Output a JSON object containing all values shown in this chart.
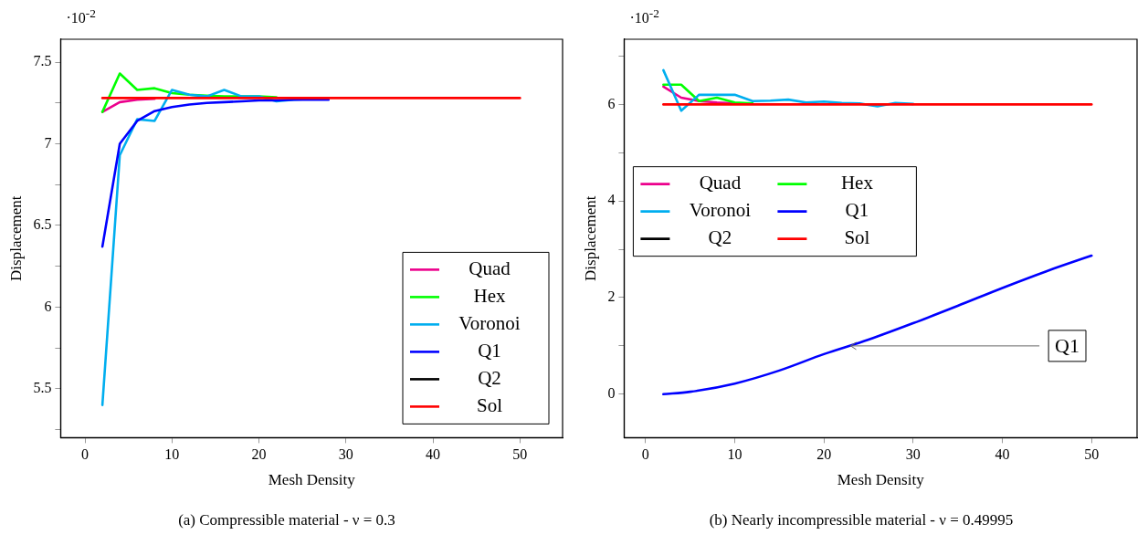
{
  "chart_data": [
    {
      "type": "line",
      "title": "(a) Compressible material - ν = 0.3",
      "xlabel": "Mesh Density",
      "ylabel": "Displacement",
      "annotations": [
        "·10$^{-2}$"
      ],
      "x": [
        2,
        4,
        6,
        8,
        10,
        12,
        14,
        16,
        18,
        20,
        22,
        24,
        26,
        28,
        30,
        32,
        34,
        36,
        38,
        40,
        42,
        44,
        46,
        48,
        50
      ],
      "series": [
        {
          "name": "Quad",
          "color": "#ec008c",
          "values": [
            7.195,
            7.255,
            7.27,
            7.275,
            null,
            null,
            null,
            null,
            null,
            null,
            null,
            null,
            null,
            null,
            null,
            null,
            null,
            null,
            null,
            null,
            null,
            null,
            null,
            null,
            null
          ]
        },
        {
          "name": "Hex",
          "color": "#00ff00",
          "values": [
            7.195,
            7.43,
            7.33,
            7.34,
            7.31,
            7.3,
            7.295,
            7.29,
            7.29,
            7.29,
            7.285,
            null,
            null,
            null,
            null,
            null,
            null,
            null,
            null,
            null,
            null,
            null,
            null,
            null,
            null
          ]
        },
        {
          "name": "Voronoi",
          "color": "#00aeef",
          "values": [
            5.4,
            6.93,
            7.15,
            7.14,
            7.33,
            7.3,
            7.29,
            7.33,
            7.29,
            7.29,
            7.26,
            7.27,
            7.275,
            null,
            null,
            null,
            null,
            null,
            null,
            null,
            null,
            null,
            null,
            null,
            null
          ]
        },
        {
          "name": "Q1",
          "color": "#0000ff",
          "values": [
            6.37,
            7.0,
            7.14,
            7.2,
            7.225,
            7.24,
            7.25,
            7.255,
            7.26,
            7.265,
            7.265,
            7.27,
            7.27,
            7.27,
            null,
            null,
            null,
            null,
            null,
            null,
            null,
            null,
            null,
            null,
            null
          ]
        },
        {
          "name": "Q2",
          "color": "#000000",
          "values": [
            null,
            null,
            null,
            null,
            null,
            null,
            null,
            null,
            null,
            null,
            null,
            null,
            null,
            null,
            null,
            null,
            null,
            null,
            null,
            null,
            null,
            null,
            null,
            null,
            null
          ]
        },
        {
          "name": "Sol",
          "color": "#ff0000",
          "values": [
            7.28,
            7.28,
            7.28,
            7.28,
            7.28,
            7.28,
            7.28,
            7.28,
            7.28,
            7.28,
            7.28,
            7.28,
            7.28,
            7.28,
            7.28,
            7.28,
            7.28,
            7.28,
            7.28,
            7.28,
            7.28,
            7.28,
            7.28,
            7.28,
            7.28
          ]
        }
      ],
      "xlim": [
        -2.8,
        54.9
      ],
      "xticks": [
        0,
        10,
        20,
        30,
        40,
        50
      ],
      "ylim": [
        5.2,
        7.64
      ],
      "yticks": [
        {
          "value": 5.25,
          "label": null
        },
        5.5,
        {
          "value": 5.75,
          "label": null
        },
        6,
        {
          "value": 6.25,
          "label": null
        },
        6.5,
        {
          "value": 6.75,
          "label": null
        },
        7,
        {
          "value": 7.25,
          "label": null
        },
        7.5
      ],
      "grid": false,
      "legend": "bottom right",
      "marker": "none",
      "line_style": "solid"
    },
    {
      "type": "line",
      "title": "(b) Nearly incompressible material - ν = 0.49995",
      "xlabel": "Mesh Density",
      "ylabel": "Displacement",
      "annotations": [
        "·10$^{-2}$",
        {
          "text": "Q1",
          "x": 23,
          "y": 1.0
        }
      ],
      "x": [
        2,
        4,
        6,
        8,
        10,
        12,
        14,
        16,
        18,
        20,
        22,
        24,
        26,
        28,
        30,
        32,
        34,
        36,
        38,
        40,
        42,
        44,
        46,
        48,
        50
      ],
      "series": [
        {
          "name": "Quad",
          "color": "#ec008c",
          "values": [
            6.37,
            6.14,
            6.07,
            6.04,
            6.02,
            null,
            null,
            null,
            null,
            null,
            null,
            null,
            null,
            null,
            null,
            null,
            null,
            null,
            null,
            null,
            null,
            null,
            null,
            null,
            null
          ]
        },
        {
          "name": "Hex",
          "color": "#00ff00",
          "values": [
            6.41,
            6.41,
            6.07,
            6.14,
            6.04,
            6.02,
            null,
            null,
            null,
            null,
            null,
            null,
            null,
            null,
            null,
            null,
            null,
            null,
            null,
            null,
            null,
            null,
            null,
            null,
            null
          ]
        },
        {
          "name": "Voronoi",
          "color": "#00aeef",
          "values": [
            6.71,
            5.87,
            6.2,
            6.2,
            6.2,
            6.07,
            6.08,
            6.1,
            6.04,
            6.06,
            6.03,
            6.02,
            5.96,
            6.03,
            6.01,
            null,
            null,
            null,
            null,
            null,
            null,
            null,
            null,
            null,
            null
          ]
        },
        {
          "name": "Q1",
          "color": "#0000ff",
          "x": [
            2,
            5,
            10,
            15,
            20,
            25,
            30,
            35,
            40,
            45,
            50
          ],
          "values": [
            0.0,
            0.05,
            0.22,
            0.49,
            0.83,
            1.13,
            1.47,
            1.83,
            2.2,
            2.55,
            2.87
          ]
        },
        {
          "name": "Q2",
          "color": "#000000",
          "values": [
            null,
            null,
            null,
            null,
            null,
            null,
            null,
            null,
            null,
            null,
            null,
            null,
            null,
            null,
            null,
            null,
            null,
            null,
            null,
            null,
            null,
            null,
            null,
            null,
            null
          ]
        },
        {
          "name": "Sol",
          "color": "#ff0000",
          "values": [
            6.0,
            6.0,
            6.0,
            6.0,
            6.0,
            6.0,
            6.0,
            6.0,
            6.0,
            6.0,
            6.0,
            6.0,
            6.0,
            6.0,
            6.0,
            6.0,
            6.0,
            6.0,
            6.0,
            6.0,
            6.0,
            6.0,
            6.0,
            6.0,
            6.0
          ]
        }
      ],
      "xlim": [
        -2.4,
        55.1
      ],
      "xticks": [
        0,
        10,
        20,
        30,
        40,
        50
      ],
      "ylim": [
        -0.9,
        7.35
      ],
      "yticks": [
        0,
        {
          "value": 1,
          "label": null
        },
        2,
        {
          "value": 3,
          "label": null
        },
        4,
        {
          "value": 5,
          "label": null
        },
        6,
        {
          "value": 7,
          "label": null
        }
      ],
      "grid": false,
      "legend": "left",
      "marker": "none",
      "line_style": "solid"
    }
  ]
}
